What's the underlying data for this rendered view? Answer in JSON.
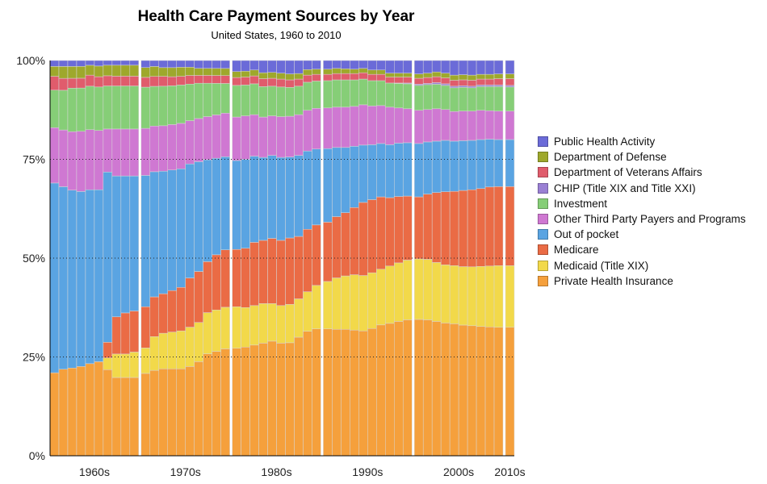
{
  "chart_data": {
    "type": "bar",
    "stacked": "percent",
    "title": "Health Care Payment Sources by Year",
    "subtitle": "United States, 1960 to 2010",
    "xlabel": "",
    "ylabel": "",
    "ylim": [
      0,
      100
    ],
    "y_ticks": [
      "0%",
      "25%",
      "50%",
      "75%",
      "100%"
    ],
    "grid": "horizontal dotted",
    "legend_position": "right",
    "decade_labels": [
      "1960s",
      "1970s",
      "1980s",
      "1990s",
      "2000s",
      "2010s"
    ],
    "years": [
      1960,
      1961,
      1962,
      1963,
      1964,
      1965,
      1966,
      1967,
      1968,
      1969,
      1970,
      1971,
      1972,
      1973,
      1974,
      1975,
      1976,
      1977,
      1978,
      1979,
      1980,
      1981,
      1982,
      1983,
      1984,
      1985,
      1986,
      1987,
      1988,
      1989,
      1990,
      1991,
      1992,
      1993,
      1994,
      1995,
      1996,
      1997,
      1998,
      1999,
      2000,
      2001,
      2002,
      2003,
      2004,
      2005,
      2006,
      2007,
      2008,
      2009,
      2010
    ],
    "series": [
      {
        "name": "Private Health Insurance",
        "color": "#f5a03c",
        "values": [
          21,
          21.8,
          22.2,
          22.7,
          23.3,
          23.8,
          22,
          20,
          20,
          20,
          21,
          21.5,
          22,
          22,
          22,
          22.7,
          24,
          26,
          26.5,
          27,
          27.2,
          27.5,
          28,
          28.5,
          29,
          28.5,
          28.6,
          30,
          31.5,
          32.1,
          32.1,
          32,
          32,
          31.8,
          31.6,
          32.2,
          33.1,
          33.5,
          34,
          34.4,
          34.5,
          34.4,
          34,
          33.6,
          33.4,
          33.1,
          32.9,
          32.7,
          32.6,
          32.5,
          32.5
        ]
      },
      {
        "name": "Medicaid (Title XIX)",
        "color": "#f2d94a",
        "values": [
          0,
          0,
          0,
          0,
          0,
          0,
          3,
          6,
          6,
          6.5,
          6.5,
          8.5,
          9,
          9.3,
          9.6,
          10,
          10,
          10.5,
          10.5,
          10.5,
          10.5,
          10,
          10,
          10,
          9.5,
          9.5,
          9.7,
          9.7,
          10,
          11,
          12,
          13,
          13.5,
          14,
          14,
          14.1,
          14.1,
          14.5,
          14.8,
          15.1,
          15.3,
          15.3,
          14.9,
          14.7,
          14.7,
          14.8,
          14.9,
          15.2,
          15.4,
          15.6,
          15.6
        ]
      },
      {
        "name": "Medicare",
        "color": "#ea6b45",
        "values": [
          0,
          0,
          0,
          0,
          0,
          0,
          4,
          9.5,
          10.5,
          10.5,
          10.5,
          10,
          10,
          10.5,
          11,
          12.5,
          13,
          13,
          14,
          14.5,
          14.5,
          15,
          16,
          16,
          16.5,
          16.5,
          16.8,
          15.8,
          15.8,
          15.3,
          15,
          15.5,
          16,
          17,
          18.5,
          18.5,
          18.3,
          17.3,
          16.8,
          16.2,
          15.7,
          16.5,
          17.7,
          18.5,
          18.8,
          19.3,
          19.5,
          19.7,
          20,
          20,
          20
        ]
      },
      {
        "name": "Out of pocket",
        "color": "#5aa4e2",
        "values": [
          48,
          46,
          45,
          44.5,
          44,
          43.5,
          43.5,
          36,
          35,
          34.5,
          33.5,
          31.5,
          31,
          30.5,
          30,
          29,
          28,
          26,
          24.5,
          23.5,
          22.5,
          22.5,
          21.8,
          21,
          21,
          21,
          20.5,
          20.5,
          19.8,
          19.2,
          18.6,
          17.5,
          16.5,
          15.5,
          14.5,
          13.9,
          13.5,
          13.4,
          13.5,
          13.5,
          13.5,
          13.2,
          13,
          13,
          12.7,
          12.6,
          12.5,
          12.4,
          12.1,
          11.9,
          11.9
        ]
      },
      {
        "name": "Other Third Party Payers and Programs",
        "color": "#cf78d2",
        "values": [
          14,
          14.3,
          14.8,
          15.3,
          15.2,
          15,
          11,
          12,
          12,
          12,
          12,
          11.5,
          11.5,
          11.5,
          11.5,
          11,
          11,
          11,
          11,
          11,
          11,
          11,
          10.5,
          10.2,
          10,
          10.3,
          10.3,
          10.3,
          10.3,
          10.3,
          10.3,
          10.2,
          10.2,
          10.1,
          10.2,
          9.8,
          9.6,
          9.5,
          8.9,
          8.6,
          8.4,
          8.2,
          8.2,
          7.8,
          7.5,
          7.5,
          7.4,
          7.4,
          7.2,
          7.2,
          7.2
        ]
      },
      {
        "name": "Investment",
        "color": "#86ce77",
        "values": [
          9.5,
          10,
          11,
          11,
          11,
          11,
          11,
          11,
          11,
          11,
          10.5,
          10,
          10,
          9.8,
          9.7,
          9.3,
          9,
          8.5,
          8,
          7.5,
          8,
          7.8,
          7.8,
          7.7,
          7.5,
          7.5,
          7.3,
          7.2,
          7.1,
          6.9,
          6.9,
          6.9,
          6.9,
          6.7,
          6.5,
          6.4,
          6.3,
          6.1,
          6.2,
          6.3,
          6.3,
          6.3,
          6.2,
          6.1,
          6,
          6,
          5.9,
          6,
          6.1,
          6.2,
          6.1
        ]
      },
      {
        "name": "CHIP (Title XIX and Title XXI)",
        "color": "#9a80d4",
        "values": [
          0,
          0,
          0,
          0,
          0,
          0,
          0,
          0,
          0,
          0,
          0,
          0,
          0,
          0,
          0,
          0,
          0,
          0,
          0,
          0,
          0,
          0,
          0,
          0,
          0,
          0,
          0,
          0,
          0,
          0,
          0,
          0,
          0,
          0,
          0,
          0,
          0,
          0,
          0.1,
          0.2,
          0.3,
          0.3,
          0.4,
          0.4,
          0.4,
          0.4,
          0.4,
          0.4,
          0.4,
          0.4,
          0.4
        ]
      },
      {
        "name": "Department of Veterans Affairs",
        "color": "#e05c6c",
        "values": [
          3.5,
          3,
          2.5,
          2.5,
          2.8,
          2.6,
          2.6,
          2.5,
          2.5,
          2.5,
          2.5,
          2.5,
          2.5,
          2.3,
          2.2,
          2.2,
          2,
          2,
          2,
          2,
          2,
          2,
          2,
          2,
          2,
          2,
          1.9,
          1.8,
          1.8,
          1.7,
          1.6,
          1.6,
          1.6,
          1.6,
          1.6,
          1.6,
          1.6,
          1.5,
          1.5,
          1.5,
          1.5,
          1.5,
          1.5,
          1.5,
          1.5,
          1.5,
          1.5,
          1.5,
          1.5,
          1.6,
          1.7
        ]
      },
      {
        "name": "Department of Defense",
        "color": "#9ea82c",
        "values": [
          2.5,
          3,
          3,
          3,
          2.5,
          2.7,
          2.7,
          2.8,
          2.8,
          2.8,
          2.5,
          2.5,
          2.2,
          2.3,
          2.3,
          2.1,
          1.8,
          1.8,
          1.8,
          1.8,
          1.5,
          1.5,
          1.5,
          1.5,
          1.5,
          1.5,
          1.5,
          1.4,
          1.4,
          1.3,
          1.3,
          1.3,
          1.2,
          1.1,
          1.1,
          1.1,
          1.1,
          1,
          1,
          1,
          1.1,
          1.1,
          1.2,
          1.2,
          1.3,
          1.3,
          1.3,
          1.2,
          1.2,
          1.2,
          1.2
        ]
      },
      {
        "name": "Public Health Activity",
        "color": "#6b6bd8",
        "values": [
          1.5,
          1.5,
          1.5,
          1.5,
          1.2,
          1.4,
          1.2,
          1.2,
          1.2,
          1.2,
          1.8,
          1.5,
          1.8,
          1.8,
          1.7,
          1.7,
          2,
          2,
          2,
          2,
          2.8,
          2.7,
          2.4,
          3.1,
          3,
          3.2,
          3.4,
          3.3,
          2.3,
          2.2,
          2.2,
          2,
          2.1,
          2.2,
          2,
          2.4,
          2.4,
          3.2,
          3.2,
          3.2,
          3.4,
          3.2,
          2.9,
          3.2,
          3.7,
          3.6,
          3.7,
          3.5,
          3.5,
          3.4,
          3.4
        ]
      }
    ]
  }
}
